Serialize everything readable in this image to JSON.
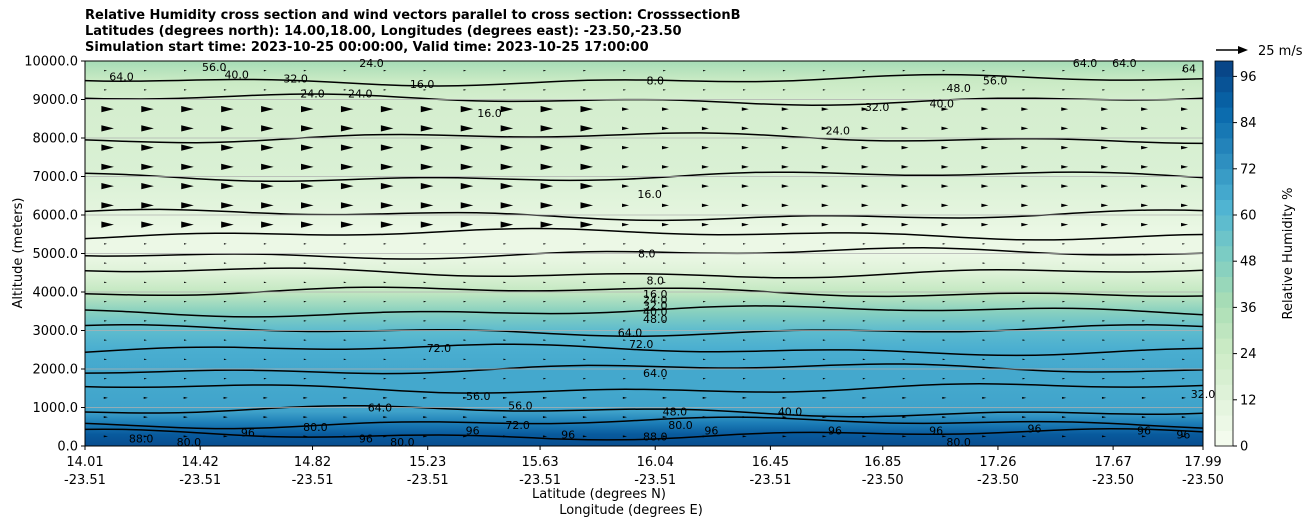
{
  "titles": [
    "Relative Humidity cross section and wind vectors parallel to cross section: CrosssectionB",
    "Latitudes (degrees north): 14.00,18.00, Longitudes (degrees east): -23.50,-23.50",
    "Simulation start time: 2023-10-25 00:00:00, Valid time: 2023-10-25 17:00:00"
  ],
  "chart_data": {
    "type": "heatmap",
    "subtype": "filled contour cross-section with wind vectors",
    "ylabel": "Altitude (meters)",
    "xlabel_line1": "Latitude (degrees N)",
    "xlabel_line2": "Longitude (degrees E)",
    "ylim": [
      0,
      10000
    ],
    "yticks": [
      "0.0",
      "1000.0",
      "2000.0",
      "3000.0",
      "4000.0",
      "5000.0",
      "6000.0",
      "7000.0",
      "8000.0",
      "9000.0",
      "10000.0"
    ],
    "y_tick_values": [
      0,
      1000,
      2000,
      3000,
      4000,
      5000,
      6000,
      7000,
      8000,
      9000,
      10000
    ],
    "x_ticks": [
      {
        "lat": "14.01",
        "lon": "-23.51"
      },
      {
        "lat": "14.42",
        "lon": "-23.51"
      },
      {
        "lat": "14.82",
        "lon": "-23.51"
      },
      {
        "lat": "15.23",
        "lon": "-23.51"
      },
      {
        "lat": "15.63",
        "lon": "-23.51"
      },
      {
        "lat": "16.04",
        "lon": "-23.51"
      },
      {
        "lat": "16.45",
        "lon": "-23.51"
      },
      {
        "lat": "16.85",
        "lon": "-23.50"
      },
      {
        "lat": "17.26",
        "lon": "-23.50"
      },
      {
        "lat": "17.67",
        "lon": "-23.50"
      },
      {
        "lat": "17.99",
        "lon": "-23.50"
      }
    ],
    "x_tick_positions": [
      14.01,
      14.42,
      14.82,
      15.23,
      15.63,
      16.04,
      16.45,
      16.85,
      17.26,
      17.67,
      17.99
    ],
    "xlim": [
      14.01,
      17.99
    ],
    "grid": "horizontal",
    "colorbar": {
      "label": "Relative Humidity %",
      "ticks": [
        "0",
        "12",
        "24",
        "36",
        "48",
        "60",
        "72",
        "84",
        "96"
      ],
      "tick_values": [
        0,
        12,
        24,
        36,
        48,
        60,
        72,
        84,
        96
      ],
      "range": [
        0,
        100
      ],
      "colors": [
        "#f7fcf0",
        "#e0f3db",
        "#ccebc5",
        "#a8ddb5",
        "#7bccc4",
        "#4eb3d3",
        "#2b8cbe",
        "#0868ac",
        "#084081"
      ]
    },
    "wind_key": {
      "label": "25 m/s"
    },
    "rh_profile": [
      {
        "z": 0,
        "rh": 96
      },
      {
        "z": 300,
        "rh": 92
      },
      {
        "z": 600,
        "rh": 80
      },
      {
        "z": 900,
        "rh": 68
      },
      {
        "z": 1500,
        "rh": 66
      },
      {
        "z": 2000,
        "rh": 66
      },
      {
        "z": 2500,
        "rh": 64
      },
      {
        "z": 3000,
        "rh": 58
      },
      {
        "z": 3500,
        "rh": 46
      },
      {
        "z": 4000,
        "rh": 28
      },
      {
        "z": 4500,
        "rh": 14
      },
      {
        "z": 5000,
        "rh": 6
      },
      {
        "z": 5500,
        "rh": 6
      },
      {
        "z": 6000,
        "rh": 10
      },
      {
        "z": 7000,
        "rh": 16
      },
      {
        "z": 8000,
        "rh": 18
      },
      {
        "z": 9000,
        "rh": 20
      },
      {
        "z": 9500,
        "rh": 26
      },
      {
        "z": 10000,
        "rh": 38
      }
    ],
    "contour_labels": [
      {
        "text": "8.0",
        "lat": 16.04,
        "z": 9500
      },
      {
        "text": "16.0",
        "lat": 15.21,
        "z": 9400
      },
      {
        "text": "16.0",
        "lat": 15.45,
        "z": 8650
      },
      {
        "text": "24.0",
        "lat": 14.82,
        "z": 9150
      },
      {
        "text": "24.0",
        "lat": 14.99,
        "z": 9150
      },
      {
        "text": "24.0",
        "lat": 15.03,
        "z": 9950
      },
      {
        "text": "32.0",
        "lat": 14.76,
        "z": 9550
      },
      {
        "text": "40.0",
        "lat": 14.55,
        "z": 9650
      },
      {
        "text": "56.0",
        "lat": 14.47,
        "z": 9850
      },
      {
        "text": "64.0",
        "lat": 14.14,
        "z": 9600
      },
      {
        "text": "24.0",
        "lat": 16.69,
        "z": 8200
      },
      {
        "text": "32.0",
        "lat": 16.83,
        "z": 8800
      },
      {
        "text": "40.0",
        "lat": 17.06,
        "z": 8900
      },
      {
        "text": "48.0",
        "lat": 17.12,
        "z": 9300
      },
      {
        "text": "56.0",
        "lat": 17.25,
        "z": 9500
      },
      {
        "text": "64.0",
        "lat": 17.57,
        "z": 9950
      },
      {
        "text": "16.0",
        "lat": 16.02,
        "z": 6550
      },
      {
        "text": "8.0",
        "lat": 16.01,
        "z": 5000
      },
      {
        "text": "8.0",
        "lat": 16.04,
        "z": 4300
      },
      {
        "text": "16.0",
        "lat": 16.04,
        "z": 3950
      },
      {
        "text": "24.0",
        "lat": 16.04,
        "z": 3800
      },
      {
        "text": "32.0",
        "lat": 16.04,
        "z": 3650
      },
      {
        "text": "40.0",
        "lat": 16.04,
        "z": 3500
      },
      {
        "text": "48.0",
        "lat": 16.04,
        "z": 3300
      },
      {
        "text": "64.0",
        "lat": 15.95,
        "z": 2950
      },
      {
        "text": "72.0",
        "lat": 15.99,
        "z": 2650
      },
      {
        "text": "72.0",
        "lat": 15.27,
        "z": 2550
      },
      {
        "text": "64.0",
        "lat": 16.04,
        "z": 1900
      },
      {
        "text": "56.0",
        "lat": 15.41,
        "z": 1300
      },
      {
        "text": "56.0",
        "lat": 15.56,
        "z": 1050
      },
      {
        "text": "64.0",
        "lat": 15.06,
        "z": 1000
      },
      {
        "text": "48.0",
        "lat": 16.11,
        "z": 900
      },
      {
        "text": "40.0",
        "lat": 16.52,
        "z": 900
      },
      {
        "text": "80.0",
        "lat": 16.13,
        "z": 550
      },
      {
        "text": "88.0",
        "lat": 16.04,
        "z": 250
      },
      {
        "text": "72.0",
        "lat": 15.55,
        "z": 550
      },
      {
        "text": "80.0",
        "lat": 14.38,
        "z": 100
      },
      {
        "text": "88.0",
        "lat": 14.21,
        "z": 200
      },
      {
        "text": "80.0",
        "lat": 15.14,
        "z": 100
      },
      {
        "text": "96",
        "lat": 14.59,
        "z": 350
      },
      {
        "text": "80.0",
        "lat": 14.83,
        "z": 500
      },
      {
        "text": "96",
        "lat": 15.01,
        "z": 200
      },
      {
        "text": "96",
        "lat": 15.39,
        "z": 400
      },
      {
        "text": "96",
        "lat": 15.73,
        "z": 300
      },
      {
        "text": "96",
        "lat": 16.24,
        "z": 400
      },
      {
        "text": "96",
        "lat": 16.68,
        "z": 400
      },
      {
        "text": "96",
        "lat": 17.04,
        "z": 400
      },
      {
        "text": "96",
        "lat": 17.39,
        "z": 450
      },
      {
        "text": "80.0",
        "lat": 17.12,
        "z": 100
      },
      {
        "text": "96",
        "lat": 17.78,
        "z": 400
      },
      {
        "text": "96",
        "lat": 17.92,
        "z": 300
      },
      {
        "text": "32.0",
        "lat": 17.99,
        "z": 1350
      },
      {
        "text": "64",
        "lat": 17.94,
        "z": 9800
      },
      {
        "text": "64.0",
        "lat": 17.71,
        "z": 9950
      }
    ]
  }
}
